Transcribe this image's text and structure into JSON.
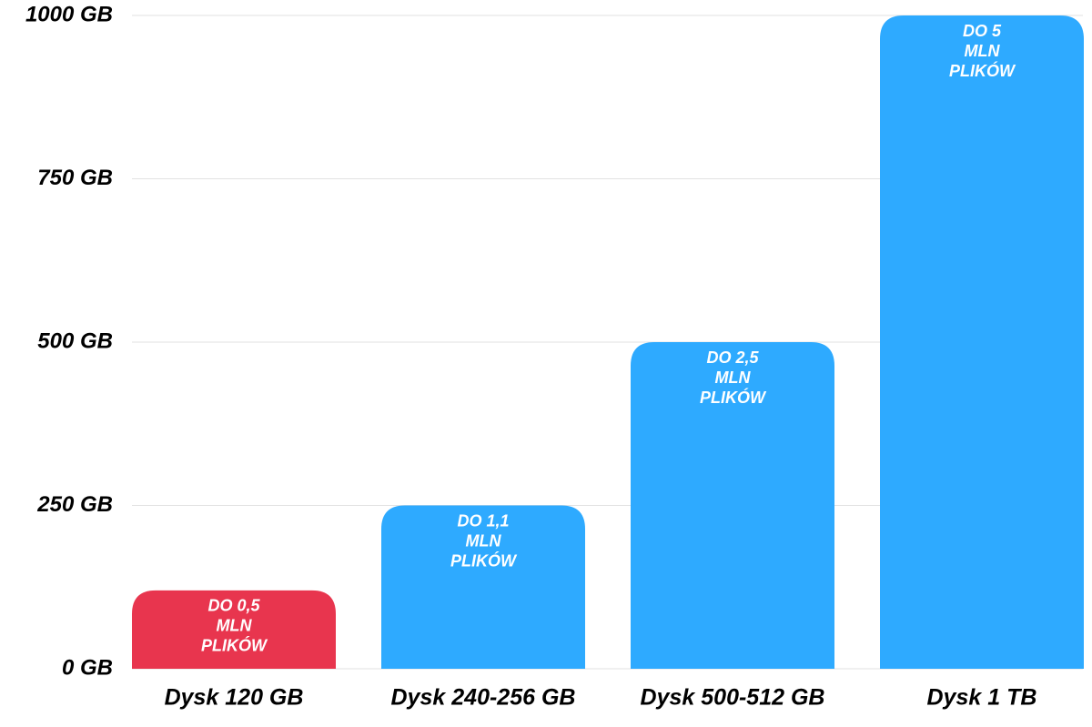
{
  "chart_data": {
    "type": "bar",
    "categories": [
      "Dysk 120 GB",
      "Dysk 240-256 GB",
      "Dysk 500-512 GB",
      "Dysk 1 TB"
    ],
    "values": [
      120,
      250,
      500,
      1000
    ],
    "colors": [
      "#e8354e",
      "#2eaaff",
      "#2eaaff",
      "#2eaaff"
    ],
    "bar_labels": [
      [
        "DO 0,5",
        "MLN",
        "PLIKÓW"
      ],
      [
        "DO 1,1",
        "MLN",
        "PLIKÓW"
      ],
      [
        "DO 2,5",
        "MLN",
        "PLIKÓW"
      ],
      [
        "DO 5",
        "MLN",
        "PLIKÓW"
      ]
    ],
    "ylim": [
      0,
      1000
    ],
    "yticks": [
      {
        "value": 0,
        "label": "0 GB"
      },
      {
        "value": 250,
        "label": "250 GB"
      },
      {
        "value": 500,
        "label": "500 GB"
      },
      {
        "value": 750,
        "label": "750 GB"
      },
      {
        "value": 1000,
        "label": "1000 GB"
      }
    ],
    "grid": true
  }
}
